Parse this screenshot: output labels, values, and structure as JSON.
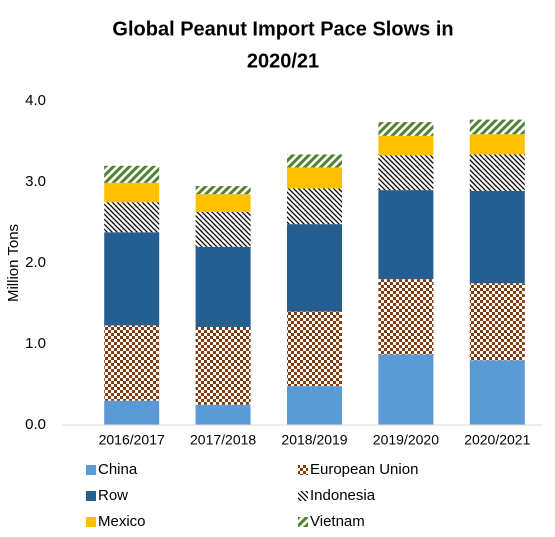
{
  "chart_data": {
    "type": "stacked_bar",
    "title": [
      "Global Peanut Import Pace Slows in",
      "2020/21"
    ],
    "ylabel": "Million Tons",
    "categories": [
      "2016/2017",
      "2017/2018",
      "2018/2019",
      "2019/2020",
      "2020/2021"
    ],
    "series": [
      {
        "name": "China",
        "color": "#5b9bd5",
        "values": [
          0.3,
          0.25,
          0.48,
          0.87,
          0.8
        ]
      },
      {
        "name": "European Union",
        "color": "#843c0c",
        "pattern": "dots",
        "values": [
          0.93,
          0.96,
          0.92,
          0.93,
          0.95
        ]
      },
      {
        "name": "Row",
        "color": "#255e91",
        "values": [
          1.15,
          0.99,
          1.08,
          1.1,
          1.14
        ]
      },
      {
        "name": "Indonesia",
        "color": "#000000",
        "pattern": "hatch",
        "values": [
          0.37,
          0.43,
          0.44,
          0.43,
          0.45
        ]
      },
      {
        "name": "Mexico",
        "color": "#ffc000",
        "values": [
          0.24,
          0.22,
          0.26,
          0.24,
          0.25
        ]
      },
      {
        "name": "Vietnam",
        "color": "#548235",
        "pattern": "stripes",
        "values": [
          0.21,
          0.1,
          0.16,
          0.17,
          0.18
        ]
      }
    ],
    "ylim": [
      0,
      4
    ],
    "yticks": [
      {
        "value": 0,
        "label": "0.0"
      },
      {
        "value": 1,
        "label": "1.0"
      },
      {
        "value": 2,
        "label": "2.0"
      },
      {
        "value": 3,
        "label": "3.0"
      },
      {
        "value": 4,
        "label": "4.0"
      }
    ],
    "grid": false,
    "legend": "bottom"
  }
}
